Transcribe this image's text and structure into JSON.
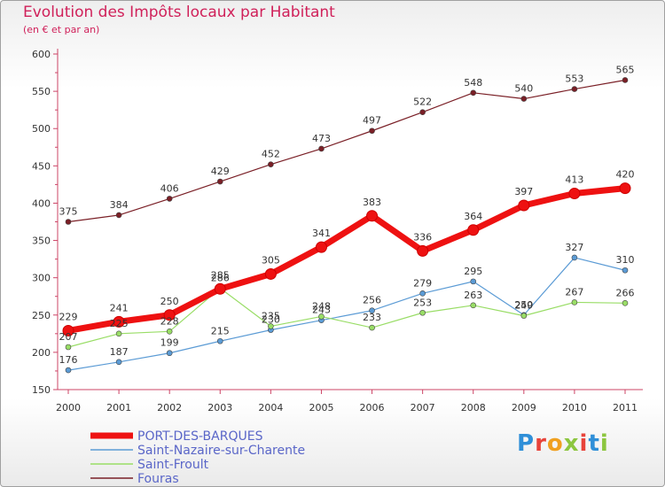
{
  "page": {
    "title": "Evolution des Impôts locaux par Habitant",
    "subtitle": "(en € et par an)"
  },
  "logo": {
    "text": "Proxiti"
  },
  "chart_data": {
    "type": "line",
    "title": "Evolution des Impôts locaux par Habitant",
    "subtitle": "(en € et par an)",
    "x": [
      "2000",
      "2001",
      "2002",
      "2003",
      "2004",
      "2005",
      "2006",
      "2007",
      "2008",
      "2009",
      "2010",
      "2011"
    ],
    "ylim": [
      150,
      600
    ],
    "yticks": [
      150,
      200,
      250,
      300,
      350,
      400,
      450,
      500,
      550,
      600
    ],
    "grid": false,
    "legend_position": "bottom-left",
    "series": [
      {
        "name": "PORT-DES-BARQUES",
        "color": "#ee1111",
        "emphasis": true,
        "values": [
          229,
          241,
          250,
          285,
          305,
          341,
          383,
          336,
          364,
          397,
          413,
          420
        ]
      },
      {
        "name": "Saint-Nazaire-sur-Charente",
        "color": "#5b9bd5",
        "emphasis": false,
        "values": [
          176,
          187,
          199,
          215,
          230,
          243,
          256,
          279,
          295,
          250,
          327,
          310
        ]
      },
      {
        "name": "Saint-Froult",
        "color": "#99dd66",
        "emphasis": false,
        "values": [
          207,
          225,
          228,
          286,
          235,
          248,
          233,
          253,
          263,
          249,
          267,
          266
        ]
      },
      {
        "name": "Fouras",
        "color": "#7a1f26",
        "emphasis": false,
        "values": [
          375,
          384,
          406,
          429,
          452,
          473,
          497,
          522,
          548,
          540,
          553,
          565
        ]
      }
    ]
  }
}
